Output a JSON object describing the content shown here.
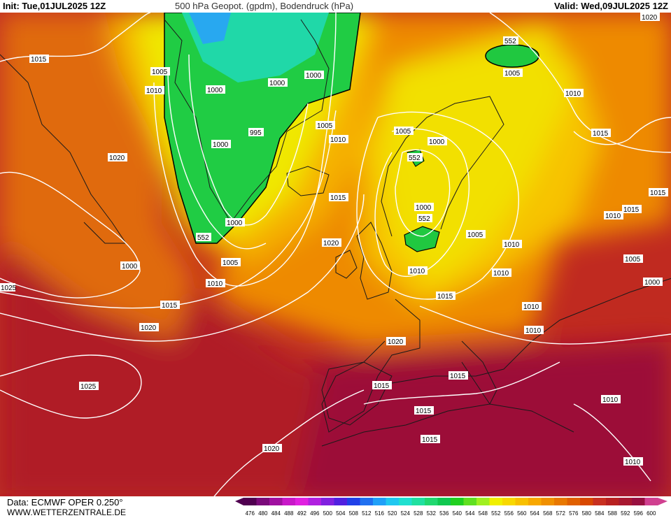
{
  "header": {
    "init": "Init: Tue,01JUL2025 12Z",
    "title": "500 hPa Geopot. (gpdm), Bodendruck (hPa)",
    "valid": "Valid: Wed,09JUL2025 12Z"
  },
  "footer": {
    "data_source": "Data: ECMWF OPER 0.250°",
    "website": "WWW.WETTERZENTRALE.DE"
  },
  "colorbar": {
    "values": [
      "476",
      "480",
      "484",
      "488",
      "492",
      "496",
      "500",
      "504",
      "508",
      "512",
      "516",
      "520",
      "524",
      "528",
      "532",
      "536",
      "540",
      "544",
      "548",
      "552",
      "556",
      "560",
      "564",
      "568",
      "572",
      "576",
      "580",
      "584",
      "588",
      "592",
      "596",
      "600"
    ],
    "colors": [
      "#500050",
      "#7a0a7a",
      "#a010a0",
      "#c818c8",
      "#e020e0",
      "#b020e0",
      "#8020e0",
      "#5020e0",
      "#2040e8",
      "#2070f0",
      "#20a0f8",
      "#20c8f0",
      "#20e0d0",
      "#20e0a0",
      "#20d870",
      "#10c850",
      "#20d020",
      "#60e020",
      "#a0f020",
      "#f0f000",
      "#f8d800",
      "#f8c000",
      "#f8a800",
      "#f09000",
      "#e87800",
      "#e06000",
      "#d84800",
      "#c83020",
      "#b82020",
      "#a81830",
      "#981040",
      "#d04090"
    ]
  },
  "pressure_labels": [
    "1015",
    "1005",
    "1010",
    "1000",
    "1000",
    "1000",
    "995",
    "1000",
    "1005",
    "1010",
    "1020",
    "1000",
    "1005",
    "1010",
    "1015",
    "1020",
    "1025",
    "1015",
    "1020",
    "1005",
    "1000",
    "1010",
    "1015",
    "1020",
    "1015",
    "1010",
    "1015",
    "1005",
    "1010",
    "1000",
    "1005",
    "1015",
    "1010",
    "1015",
    "1020",
    "1010",
    "1005",
    "1010",
    "1000",
    "1015",
    "1015",
    "1015",
    "1010",
    "1010",
    "1010",
    "1020",
    "1000",
    "1025"
  ],
  "geopotential_labels": [
    "552",
    "552",
    "552",
    "552"
  ]
}
